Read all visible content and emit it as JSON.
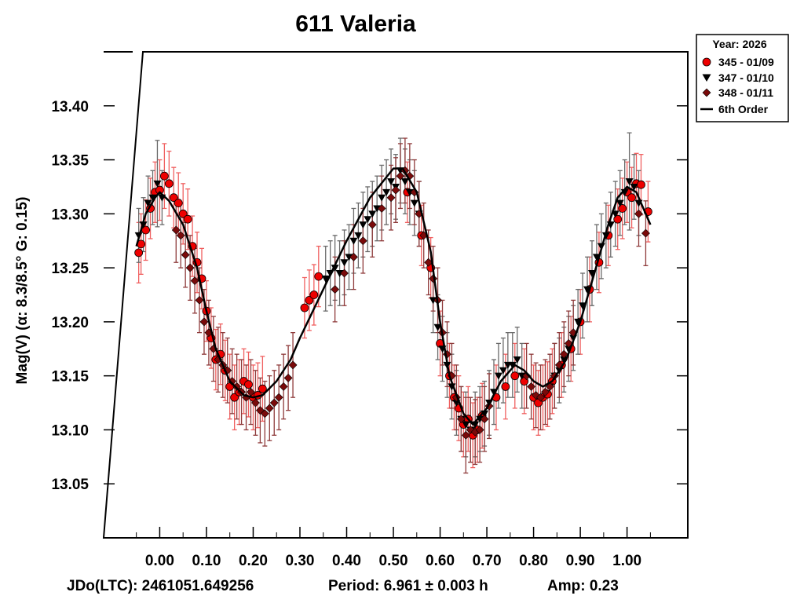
{
  "chart_data": {
    "type": "scatter",
    "title": "611 Valeria",
    "xlabel": "",
    "ylabel": "Mag(V)   (α: 8.3/8.5°  G: 0.15)",
    "xlim": [
      -0.12,
      1.13
    ],
    "ylim": [
      13.45,
      13.0
    ],
    "xticks": [
      0.0,
      0.1,
      0.2,
      0.3,
      0.4,
      0.5,
      0.6,
      0.7,
      0.8,
      0.9,
      1.0
    ],
    "xtick_labels": [
      "0.00",
      "0.10",
      "0.20",
      "0.30",
      "0.40",
      "0.50",
      "0.60",
      "0.70",
      "0.80",
      "0.90",
      "1.00"
    ],
    "yticks": [
      13.05,
      13.1,
      13.15,
      13.2,
      13.25,
      13.3,
      13.35,
      13.4
    ],
    "ytick_labels": [
      "13.05",
      "13.10",
      "13.15",
      "13.20",
      "13.25",
      "13.30",
      "13.35",
      "13.40"
    ],
    "legend": {
      "title": "Year: 2026",
      "placement": "top-right, outside",
      "entries": [
        "345 - 01/09",
        "347 - 01/10",
        "348 - 01/11",
        "6th Order"
      ]
    },
    "fit": {
      "name": "6th Order",
      "x": [
        -0.05,
        -0.03,
        -0.01,
        0.0,
        0.02,
        0.05,
        0.08,
        0.1,
        0.12,
        0.15,
        0.18,
        0.2,
        0.22,
        0.25,
        0.28,
        0.3,
        0.35,
        0.4,
        0.45,
        0.5,
        0.52,
        0.55,
        0.58,
        0.6,
        0.62,
        0.65,
        0.67,
        0.7,
        0.73,
        0.76,
        0.78,
        0.8,
        0.82,
        0.84,
        0.87,
        0.9,
        0.93,
        0.96,
        0.98,
        1.0,
        1.02,
        1.05
      ],
      "y": [
        13.27,
        13.3,
        13.315,
        13.32,
        13.312,
        13.29,
        13.25,
        13.21,
        13.175,
        13.145,
        13.132,
        13.13,
        13.132,
        13.145,
        13.165,
        13.185,
        13.23,
        13.275,
        13.315,
        13.342,
        13.342,
        13.32,
        13.265,
        13.2,
        13.15,
        13.115,
        13.105,
        13.12,
        13.145,
        13.16,
        13.155,
        13.145,
        13.14,
        13.145,
        13.165,
        13.2,
        13.245,
        13.29,
        13.315,
        13.325,
        13.32,
        13.29
      ]
    },
    "series": [
      {
        "name": "345 - 01/09",
        "color": "#ee0000",
        "marker": "circle",
        "points": [
          [
            -0.045,
            13.264,
            0.028
          ],
          [
            -0.04,
            13.272,
            0.028
          ],
          [
            -0.03,
            13.285,
            0.028
          ],
          [
            -0.02,
            13.305,
            0.028
          ],
          [
            -0.01,
            13.32,
            0.028
          ],
          [
            0.0,
            13.322,
            0.028
          ],
          [
            0.01,
            13.335,
            0.03
          ],
          [
            0.02,
            13.328,
            0.03
          ],
          [
            0.03,
            13.315,
            0.028
          ],
          [
            0.04,
            13.31,
            0.028
          ],
          [
            0.05,
            13.3,
            0.028
          ],
          [
            0.06,
            13.295,
            0.028
          ],
          [
            0.07,
            13.27,
            0.028
          ],
          [
            0.08,
            13.255,
            0.028
          ],
          [
            0.09,
            13.24,
            0.028
          ],
          [
            0.1,
            13.21,
            0.028
          ],
          [
            0.11,
            13.185,
            0.028
          ],
          [
            0.12,
            13.165,
            0.028
          ],
          [
            0.13,
            13.17,
            0.028
          ],
          [
            0.14,
            13.155,
            0.028
          ],
          [
            0.15,
            13.14,
            0.03
          ],
          [
            0.16,
            13.13,
            0.03
          ],
          [
            0.17,
            13.135,
            0.03
          ],
          [
            0.18,
            13.145,
            0.03
          ],
          [
            0.19,
            13.142,
            0.03
          ],
          [
            0.2,
            13.13,
            0.03
          ],
          [
            0.21,
            13.132,
            0.03
          ],
          [
            0.22,
            13.138,
            0.03
          ],
          [
            0.31,
            13.213,
            0.028
          ],
          [
            0.32,
            13.22,
            0.028
          ],
          [
            0.33,
            13.225,
            0.028
          ],
          [
            0.34,
            13.242,
            0.028
          ],
          [
            0.53,
            13.32,
            0.028
          ],
          [
            0.56,
            13.28,
            0.028
          ],
          [
            0.58,
            13.25,
            0.028
          ],
          [
            0.6,
            13.18,
            0.03
          ],
          [
            0.62,
            13.15,
            0.03
          ],
          [
            0.63,
            13.13,
            0.03
          ],
          [
            0.64,
            13.12,
            0.03
          ],
          [
            0.65,
            13.105,
            0.03
          ],
          [
            0.66,
            13.11,
            0.03
          ],
          [
            0.67,
            13.095,
            0.03
          ],
          [
            0.68,
            13.1,
            0.03
          ],
          [
            0.69,
            13.113,
            0.03
          ],
          [
            0.72,
            13.13,
            0.03
          ],
          [
            0.74,
            13.14,
            0.03
          ],
          [
            0.76,
            13.15,
            0.03
          ],
          [
            0.78,
            13.145,
            0.03
          ],
          [
            0.8,
            13.13,
            0.03
          ],
          [
            0.81,
            13.125,
            0.03
          ],
          [
            0.82,
            13.13,
            0.03
          ],
          [
            0.83,
            13.133,
            0.03
          ],
          [
            0.84,
            13.145,
            0.03
          ],
          [
            0.86,
            13.16,
            0.03
          ],
          [
            0.88,
            13.175,
            0.03
          ],
          [
            0.9,
            13.2,
            0.03
          ],
          [
            0.92,
            13.23,
            0.03
          ],
          [
            0.94,
            13.255,
            0.028
          ],
          [
            0.96,
            13.28,
            0.028
          ],
          [
            0.98,
            13.295,
            0.028
          ],
          [
            0.99,
            13.305,
            0.028
          ],
          [
            1.0,
            13.32,
            0.028
          ],
          [
            1.01,
            13.315,
            0.028
          ],
          [
            1.02,
            13.328,
            0.028
          ],
          [
            1.03,
            13.327,
            0.028
          ],
          [
            1.045,
            13.302,
            0.028
          ]
        ]
      },
      {
        "name": "347 - 01/10",
        "color": "#000000",
        "marker": "triangle-down",
        "points": [
          [
            -0.045,
            13.28,
            0.025
          ],
          [
            -0.035,
            13.29,
            0.025
          ],
          [
            -0.025,
            13.31,
            0.025
          ],
          [
            -0.015,
            13.315,
            0.025
          ],
          [
            -0.005,
            13.328,
            0.04
          ],
          [
            0.005,
            13.315,
            0.025
          ],
          [
            0.355,
            13.24,
            0.03
          ],
          [
            0.365,
            13.245,
            0.03
          ],
          [
            0.375,
            13.25,
            0.03
          ],
          [
            0.385,
            13.245,
            0.03
          ],
          [
            0.395,
            13.255,
            0.03
          ],
          [
            0.405,
            13.26,
            0.03
          ],
          [
            0.415,
            13.275,
            0.03
          ],
          [
            0.425,
            13.28,
            0.03
          ],
          [
            0.435,
            13.29,
            0.03
          ],
          [
            0.445,
            13.295,
            0.03
          ],
          [
            0.455,
            13.3,
            0.03
          ],
          [
            0.465,
            13.305,
            0.03
          ],
          [
            0.475,
            13.315,
            0.03
          ],
          [
            0.485,
            13.32,
            0.03
          ],
          [
            0.495,
            13.33,
            0.03
          ],
          [
            0.505,
            13.325,
            0.03
          ],
          [
            0.515,
            13.34,
            0.03
          ],
          [
            0.525,
            13.33,
            0.03
          ],
          [
            0.535,
            13.32,
            0.03
          ],
          [
            0.545,
            13.31,
            0.03
          ],
          [
            0.555,
            13.3,
            0.03
          ],
          [
            0.585,
            13.22,
            0.03
          ],
          [
            0.595,
            13.195,
            0.03
          ],
          [
            0.605,
            13.175,
            0.03
          ],
          [
            0.615,
            13.16,
            0.03
          ],
          [
            0.625,
            13.14,
            0.03
          ],
          [
            0.635,
            13.125,
            0.03
          ],
          [
            0.645,
            13.11,
            0.03
          ],
          [
            0.655,
            13.105,
            0.03
          ],
          [
            0.665,
            13.1,
            0.03
          ],
          [
            0.675,
            13.105,
            0.03
          ],
          [
            0.685,
            13.11,
            0.03
          ],
          [
            0.695,
            13.115,
            0.03
          ],
          [
            0.705,
            13.125,
            0.03
          ],
          [
            0.715,
            13.135,
            0.03
          ],
          [
            0.725,
            13.15,
            0.03
          ],
          [
            0.735,
            13.155,
            0.03
          ],
          [
            0.745,
            13.16,
            0.03
          ],
          [
            0.755,
            13.16,
            0.03
          ],
          [
            0.765,
            13.165,
            0.03
          ],
          [
            0.775,
            13.15,
            0.03
          ],
          [
            0.835,
            13.14,
            0.03
          ],
          [
            0.845,
            13.15,
            0.03
          ],
          [
            0.855,
            13.155,
            0.03
          ],
          [
            0.865,
            13.165,
            0.03
          ],
          [
            0.875,
            13.175,
            0.03
          ],
          [
            0.885,
            13.185,
            0.03
          ],
          [
            0.895,
            13.2,
            0.03
          ],
          [
            0.905,
            13.215,
            0.03
          ],
          [
            0.915,
            13.23,
            0.03
          ],
          [
            0.925,
            13.245,
            0.03
          ],
          [
            0.935,
            13.26,
            0.03
          ],
          [
            0.945,
            13.27,
            0.03
          ],
          [
            0.955,
            13.28,
            0.03
          ],
          [
            0.965,
            13.29,
            0.03
          ],
          [
            0.975,
            13.3,
            0.03
          ],
          [
            0.985,
            13.31,
            0.03
          ],
          [
            0.995,
            13.32,
            0.03
          ],
          [
            1.005,
            13.33,
            0.045
          ],
          [
            1.015,
            13.325,
            0.03
          ],
          [
            1.025,
            13.31,
            0.03
          ]
        ]
      },
      {
        "name": "348 - 01/11",
        "color": "#7a0a0a",
        "marker": "diamond",
        "points": [
          [
            0.035,
            13.285,
            0.03
          ],
          [
            0.045,
            13.28,
            0.03
          ],
          [
            0.055,
            13.262,
            0.03
          ],
          [
            0.065,
            13.25,
            0.03
          ],
          [
            0.075,
            13.238,
            0.03
          ],
          [
            0.085,
            13.22,
            0.03
          ],
          [
            0.095,
            13.2,
            0.03
          ],
          [
            0.105,
            13.19,
            0.03
          ],
          [
            0.115,
            13.175,
            0.03
          ],
          [
            0.125,
            13.165,
            0.03
          ],
          [
            0.135,
            13.16,
            0.03
          ],
          [
            0.145,
            13.155,
            0.03
          ],
          [
            0.155,
            13.145,
            0.03
          ],
          [
            0.165,
            13.14,
            0.03
          ],
          [
            0.175,
            13.135,
            0.03
          ],
          [
            0.185,
            13.13,
            0.03
          ],
          [
            0.195,
            13.135,
            0.03
          ],
          [
            0.205,
            13.125,
            0.03
          ],
          [
            0.215,
            13.118,
            0.03
          ],
          [
            0.225,
            13.115,
            0.03
          ],
          [
            0.235,
            13.12,
            0.03
          ],
          [
            0.245,
            13.125,
            0.03
          ],
          [
            0.255,
            13.13,
            0.03
          ],
          [
            0.265,
            13.14,
            0.03
          ],
          [
            0.275,
            13.148,
            0.03
          ],
          [
            0.285,
            13.16,
            0.03
          ],
          [
            0.375,
            13.23,
            0.03
          ],
          [
            0.395,
            13.245,
            0.03
          ],
          [
            0.415,
            13.26,
            0.03
          ],
          [
            0.435,
            13.275,
            0.03
          ],
          [
            0.455,
            13.29,
            0.03
          ],
          [
            0.475,
            13.305,
            0.03
          ],
          [
            0.495,
            13.315,
            0.03
          ],
          [
            0.505,
            13.322,
            0.03
          ],
          [
            0.515,
            13.335,
            0.03
          ],
          [
            0.525,
            13.34,
            0.03
          ],
          [
            0.535,
            13.335,
            0.03
          ],
          [
            0.545,
            13.32,
            0.03
          ],
          [
            0.555,
            13.3,
            0.03
          ],
          [
            0.565,
            13.28,
            0.03
          ],
          [
            0.575,
            13.255,
            0.03
          ],
          [
            0.585,
            13.24,
            0.03
          ],
          [
            0.595,
            13.22,
            0.03
          ],
          [
            0.605,
            13.19,
            0.03
          ],
          [
            0.615,
            13.17,
            0.03
          ],
          [
            0.625,
            13.15,
            0.03
          ],
          [
            0.635,
            13.13,
            0.03
          ],
          [
            0.645,
            13.11,
            0.03
          ],
          [
            0.655,
            13.095,
            0.035
          ],
          [
            0.665,
            13.1,
            0.03
          ],
          [
            0.675,
            13.098,
            0.03
          ],
          [
            0.685,
            13.1,
            0.03
          ],
          [
            0.695,
            13.11,
            0.03
          ],
          [
            0.705,
            13.122,
            0.03
          ],
          [
            0.785,
            13.15,
            0.03
          ],
          [
            0.795,
            13.14,
            0.03
          ],
          [
            0.805,
            13.132,
            0.03
          ],
          [
            0.815,
            13.13,
            0.03
          ],
          [
            0.825,
            13.135,
            0.03
          ],
          [
            0.835,
            13.14,
            0.03
          ],
          [
            0.845,
            13.15,
            0.03
          ],
          [
            0.855,
            13.16,
            0.03
          ],
          [
            0.865,
            13.17,
            0.03
          ],
          [
            0.875,
            13.18,
            0.03
          ],
          [
            0.885,
            13.19,
            0.03
          ],
          [
            1.025,
            13.3,
            0.03
          ],
          [
            1.04,
            13.282,
            0.03
          ]
        ]
      }
    ]
  },
  "footer": {
    "jdo": "JDo(LTC): 2461051.649256",
    "period": "Period: 6.961 ± 0.003 h",
    "amp": "Amp: 0.23"
  }
}
